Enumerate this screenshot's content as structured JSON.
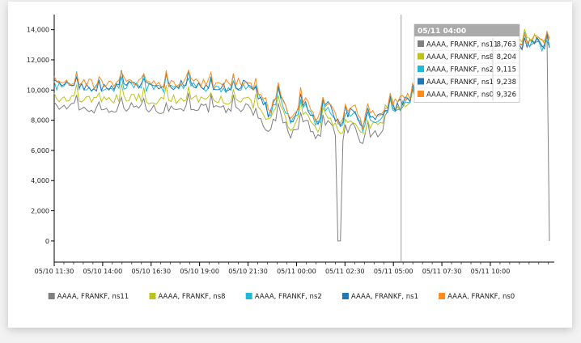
{
  "chart_data": {
    "type": "line",
    "x_ticks": [
      "05/10 11:30",
      "05/10 14:00",
      "05/10 16:30",
      "05/10 19:00",
      "05/10 21:30",
      "05/11 00:00",
      "05/11 02:30",
      "05/11 05:00",
      "05/11 07:30",
      "05/11 10:00"
    ],
    "y_ticks": [
      "0",
      "2,000",
      "4,000",
      "6,000",
      "8,000",
      "10,000",
      "12,000",
      "14,000"
    ],
    "ylim": [
      -1400,
      15000
    ],
    "xlim_hours": [
      0,
      25.8
    ],
    "series": [
      {
        "name": "AAAA, FRANKF, ns11",
        "color": "#808080"
      },
      {
        "name": "AAAA, FRANKF, ns8",
        "color": "#bcc41a"
      },
      {
        "name": "AAAA, FRANKF, ns2",
        "color": "#1fbad6"
      },
      {
        "name": "AAAA, FRANKF, ns1",
        "color": "#1f77b4"
      },
      {
        "name": "AAAA, FRANKF, ns0",
        "color": "#ff8c1a"
      }
    ],
    "tooltip": {
      "title": "05/11 04:00",
      "x_hours": 17.9,
      "rows": [
        {
          "name": "AAAA, FRANKF, ns11",
          "value": "8,763",
          "color": "#808080"
        },
        {
          "name": "AAAA, FRANKF, ns8",
          "value": "8,204",
          "color": "#bcc41a"
        },
        {
          "name": "AAAA, FRANKF, ns2",
          "value": "9,115",
          "color": "#1fbad6"
        },
        {
          "name": "AAAA, FRANKF, ns1",
          "value": "9,238",
          "color": "#1f77b4"
        },
        {
          "name": "AAAA, FRANKF, ns0",
          "value": "9,326",
          "color": "#ff8c1a"
        }
      ]
    },
    "legend_position": "bottom"
  }
}
